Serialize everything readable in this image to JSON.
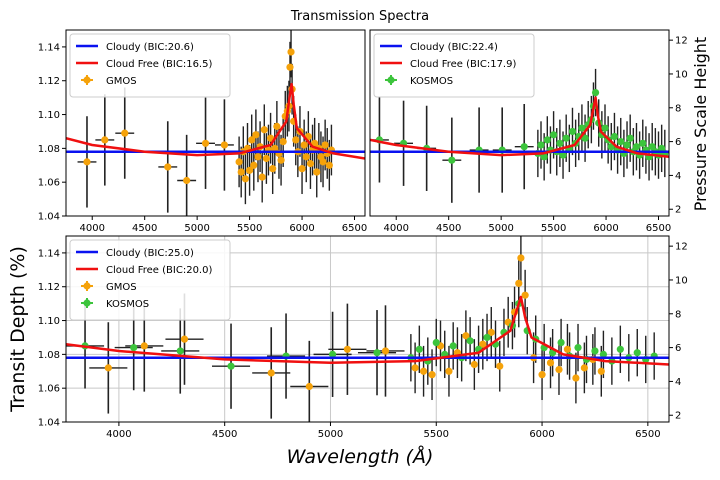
{
  "figure": {
    "title": "Transmission Spectra",
    "ylabel_left": "Transit Depth (%)",
    "ylabel_right": "Pressure Scale Height",
    "xlabel": "Wavelength (Å)"
  },
  "chart_data": [
    {
      "id": "gmos",
      "type": "scatter",
      "xlim": [
        3750,
        6600
      ],
      "ylim": [
        1.04,
        1.15
      ],
      "ylim_right": [
        1.6,
        12.6
      ],
      "xticks": [
        4000,
        4500,
        5000,
        5500,
        6000,
        6500
      ],
      "yticks": [
        1.04,
        1.06,
        1.08,
        1.1,
        1.12,
        1.14
      ],
      "yticks_right": [
        2,
        4,
        6,
        8,
        10,
        12
      ],
      "grid": false,
      "legend_position": "top-left",
      "legend": [
        "Cloudy (BIC:20.6)",
        "Cloud Free (BIC:16.5)",
        "GMOS"
      ],
      "models": {
        "cloudy_level": 1.078,
        "cloud_free": {
          "x": [
            3750,
            4000,
            4500,
            5000,
            5400,
            5700,
            5850,
            5880,
            5900,
            5920,
            5950,
            6100,
            6300,
            6600
          ],
          "y": [
            1.086,
            1.082,
            1.078,
            1.076,
            1.077,
            1.082,
            1.096,
            1.11,
            1.118,
            1.106,
            1.092,
            1.081,
            1.077,
            1.074
          ]
        }
      },
      "series": [
        {
          "name": "GMOS",
          "color": "#f5a20a",
          "x": [
            3950,
            4120,
            4310,
            4720,
            4900,
            5080,
            5260,
            5400,
            5420,
            5440,
            5460,
            5480,
            5500,
            5520,
            5540,
            5560,
            5580,
            5600,
            5620,
            5640,
            5660,
            5680,
            5700,
            5720,
            5740,
            5760,
            5780,
            5800,
            5820,
            5840,
            5860,
            5875,
            5885,
            5895,
            5905,
            5920,
            5940,
            5960,
            5980,
            6000,
            6020,
            6040,
            6060,
            6080,
            6100,
            6120,
            6140,
            6160,
            6180,
            6200,
            6220,
            6240,
            6260,
            6280
          ],
          "y": [
            1.072,
            1.085,
            1.089,
            1.069,
            1.061,
            1.083,
            1.082,
            1.072,
            1.066,
            1.078,
            1.062,
            1.08,
            1.067,
            1.085,
            1.07,
            1.088,
            1.075,
            1.081,
            1.063,
            1.091,
            1.074,
            1.079,
            1.086,
            1.068,
            1.08,
            1.093,
            1.077,
            1.073,
            1.084,
            1.099,
            1.102,
            1.105,
            1.128,
            1.137,
            1.115,
            1.096,
            1.085,
            1.078,
            1.09,
            1.068,
            1.082,
            1.075,
            1.087,
            1.071,
            1.079,
            1.083,
            1.066,
            1.08,
            1.075,
            1.072,
            1.082,
            1.077,
            1.07,
            1.079
          ],
          "yerr": 0.015
        }
      ]
    },
    {
      "id": "kosmos",
      "type": "scatter",
      "xlim": [
        3750,
        6600
      ],
      "ylim": [
        1.04,
        1.15
      ],
      "ylim_right": [
        1.6,
        12.6
      ],
      "xticks": [
        4000,
        4500,
        5000,
        5500,
        6000,
        6500
      ],
      "yticks_right": [
        2,
        4,
        6,
        8,
        10,
        12
      ],
      "grid": false,
      "legend_position": "top-left",
      "legend": [
        "Cloudy (BIC:22.4)",
        "Cloud Free (BIC:17.9)",
        "KOSMOS"
      ],
      "models": {
        "cloudy_level": 1.078,
        "cloud_free": {
          "x": [
            3750,
            4000,
            4500,
            5000,
            5400,
            5700,
            5850,
            5880,
            5900,
            5920,
            5950,
            6100,
            6300,
            6600
          ],
          "y": [
            1.085,
            1.082,
            1.078,
            1.076,
            1.077,
            1.082,
            1.094,
            1.104,
            1.11,
            1.1,
            1.09,
            1.081,
            1.077,
            1.075
          ]
        }
      },
      "series": [
        {
          "name": "KOSMOS",
          "color": "#3cc43c",
          "x": [
            3840,
            4070,
            4290,
            4530,
            4790,
            5010,
            5220,
            5350,
            5380,
            5410,
            5440,
            5470,
            5500,
            5530,
            5560,
            5590,
            5620,
            5650,
            5680,
            5710,
            5740,
            5770,
            5800,
            5830,
            5860,
            5880,
            5900,
            5930,
            5960,
            5990,
            6020,
            6050,
            6080,
            6110,
            6140,
            6170,
            6200,
            6230,
            6260,
            6290,
            6320,
            6350,
            6380,
            6410,
            6440,
            6470,
            6500,
            6530,
            6560
          ],
          "y": [
            1.085,
            1.083,
            1.08,
            1.073,
            1.079,
            1.079,
            1.081,
            1.077,
            1.082,
            1.075,
            1.085,
            1.079,
            1.088,
            1.078,
            1.083,
            1.076,
            1.086,
            1.08,
            1.09,
            1.083,
            1.087,
            1.092,
            1.086,
            1.094,
            1.097,
            1.105,
            1.113,
            1.095,
            1.088,
            1.092,
            1.085,
            1.081,
            1.087,
            1.079,
            1.084,
            1.077,
            1.082,
            1.086,
            1.078,
            1.081,
            1.076,
            1.083,
            1.079,
            1.075,
            1.081,
            1.078,
            1.076,
            1.08,
            1.077
          ],
          "yerr": 0.014
        }
      ]
    },
    {
      "id": "combined",
      "type": "scatter",
      "xlim": [
        3750,
        6600
      ],
      "ylim": [
        1.04,
        1.15
      ],
      "ylim_right": [
        1.6,
        12.6
      ],
      "xticks": [
        4000,
        4500,
        5000,
        5500,
        6000,
        6500
      ],
      "yticks": [
        1.04,
        1.06,
        1.08,
        1.1,
        1.12,
        1.14
      ],
      "yticks_right": [
        2,
        4,
        6,
        8,
        10,
        12
      ],
      "grid": true,
      "legend_position": "top-left",
      "legend": [
        "Cloudy (BIC:25.0)",
        "Cloud Free (BIC:20.0)",
        "GMOS",
        "KOSMOS"
      ],
      "models": {
        "cloudy_level": 1.078,
        "cloud_free": {
          "x": [
            3750,
            4000,
            4500,
            5000,
            5400,
            5700,
            5850,
            5880,
            5900,
            5920,
            5950,
            6100,
            6300,
            6600
          ],
          "y": [
            1.086,
            1.082,
            1.077,
            1.075,
            1.076,
            1.081,
            1.094,
            1.106,
            1.114,
            1.102,
            1.09,
            1.08,
            1.076,
            1.074
          ]
        }
      },
      "series": [
        {
          "name": "GMOS",
          "color": "#f5a20a",
          "x": [
            3950,
            4120,
            4310,
            4720,
            4900,
            5080,
            5260,
            5400,
            5440,
            5480,
            5520,
            5560,
            5600,
            5640,
            5680,
            5720,
            5760,
            5800,
            5840,
            5870,
            5890,
            5900,
            5920,
            5960,
            6000,
            6040,
            6080,
            6120,
            6160,
            6200,
            6240,
            6280
          ],
          "y": [
            1.072,
            1.085,
            1.089,
            1.069,
            1.061,
            1.083,
            1.082,
            1.072,
            1.07,
            1.068,
            1.085,
            1.07,
            1.081,
            1.091,
            1.074,
            1.086,
            1.093,
            1.073,
            1.099,
            1.105,
            1.122,
            1.137,
            1.115,
            1.078,
            1.068,
            1.075,
            1.071,
            1.083,
            1.066,
            1.072,
            1.077,
            1.07
          ],
          "yerr": 0.015
        },
        {
          "name": "KOSMOS",
          "color": "#3cc43c",
          "x": [
            3840,
            4070,
            4290,
            4530,
            4790,
            5010,
            5220,
            5380,
            5420,
            5460,
            5500,
            5540,
            5580,
            5620,
            5660,
            5700,
            5740,
            5780,
            5820,
            5860,
            5890,
            5930,
            5970,
            6010,
            6050,
            6090,
            6130,
            6170,
            6210,
            6250,
            6290,
            6330,
            6370,
            6410,
            6450,
            6490,
            6530
          ],
          "y": [
            1.085,
            1.084,
            1.082,
            1.073,
            1.079,
            1.08,
            1.081,
            1.078,
            1.083,
            1.076,
            1.087,
            1.08,
            1.085,
            1.078,
            1.088,
            1.083,
            1.09,
            1.086,
            1.093,
            1.097,
            1.11,
            1.094,
            1.089,
            1.084,
            1.081,
            1.087,
            1.079,
            1.084,
            1.077,
            1.082,
            1.08,
            1.076,
            1.083,
            1.078,
            1.081,
            1.077,
            1.079
          ],
          "yerr": 0.014
        }
      ]
    }
  ]
}
